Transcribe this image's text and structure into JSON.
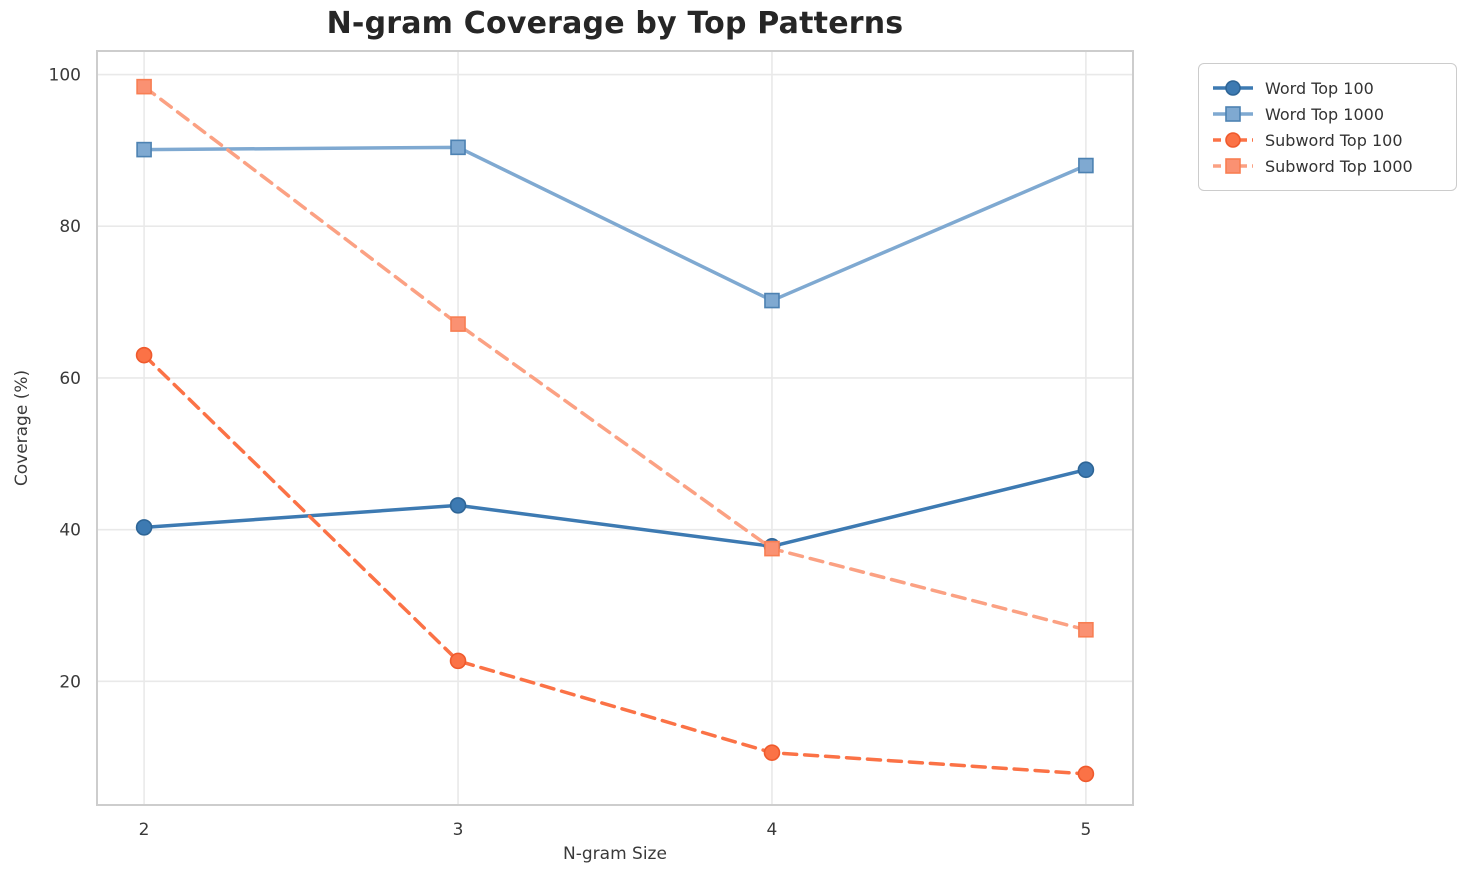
{
  "chart_data": {
    "type": "line",
    "title": "N-gram Coverage by Top Patterns",
    "xlabel": "N-gram Size",
    "ylabel": "Coverage (%)",
    "x": [
      2,
      3,
      4,
      5
    ],
    "xticks": [
      "2",
      "3",
      "4",
      "5"
    ],
    "yticks": [
      20,
      40,
      60,
      80,
      100
    ],
    "xlim": [
      1.85,
      5.15
    ],
    "ylim": [
      3.7,
      103.1
    ],
    "grid": true,
    "legend_position": "outside-top-right",
    "series": [
      {
        "name": "Word Top 100",
        "values": [
          40.3,
          43.2,
          37.8,
          47.9
        ],
        "color": "#3d7ab2",
        "marker": "circle",
        "marker_fill": "#3d7ab2",
        "marker_edge": "#2e6596",
        "dash": "solid"
      },
      {
        "name": "Word Top 1000",
        "values": [
          90.1,
          90.4,
          70.2,
          88.0
        ],
        "color": "#7fa9d1",
        "marker": "square",
        "marker_fill": "#7fa9d1",
        "marker_edge": "#4d82b2",
        "dash": "solid"
      },
      {
        "name": "Subword Top 100",
        "values": [
          63.0,
          22.7,
          10.6,
          7.8
        ],
        "color": "#fb7246",
        "marker": "circle",
        "marker_fill": "#fb7246",
        "marker_edge": "#ef5a2d",
        "dash": "dashed"
      },
      {
        "name": "Subword Top 1000",
        "values": [
          98.4,
          67.1,
          37.5,
          26.8
        ],
        "color": "#fba183",
        "marker": "square",
        "marker_fill": "#fa9172",
        "marker_edge": "#f87e53",
        "dash": "dashed"
      }
    ],
    "colors": {
      "background": "#ffffff",
      "grid": "#e9e9e9",
      "spine": "#cdcdcd",
      "tick_text": "#3a3a3a",
      "title_text": "#262626"
    }
  }
}
